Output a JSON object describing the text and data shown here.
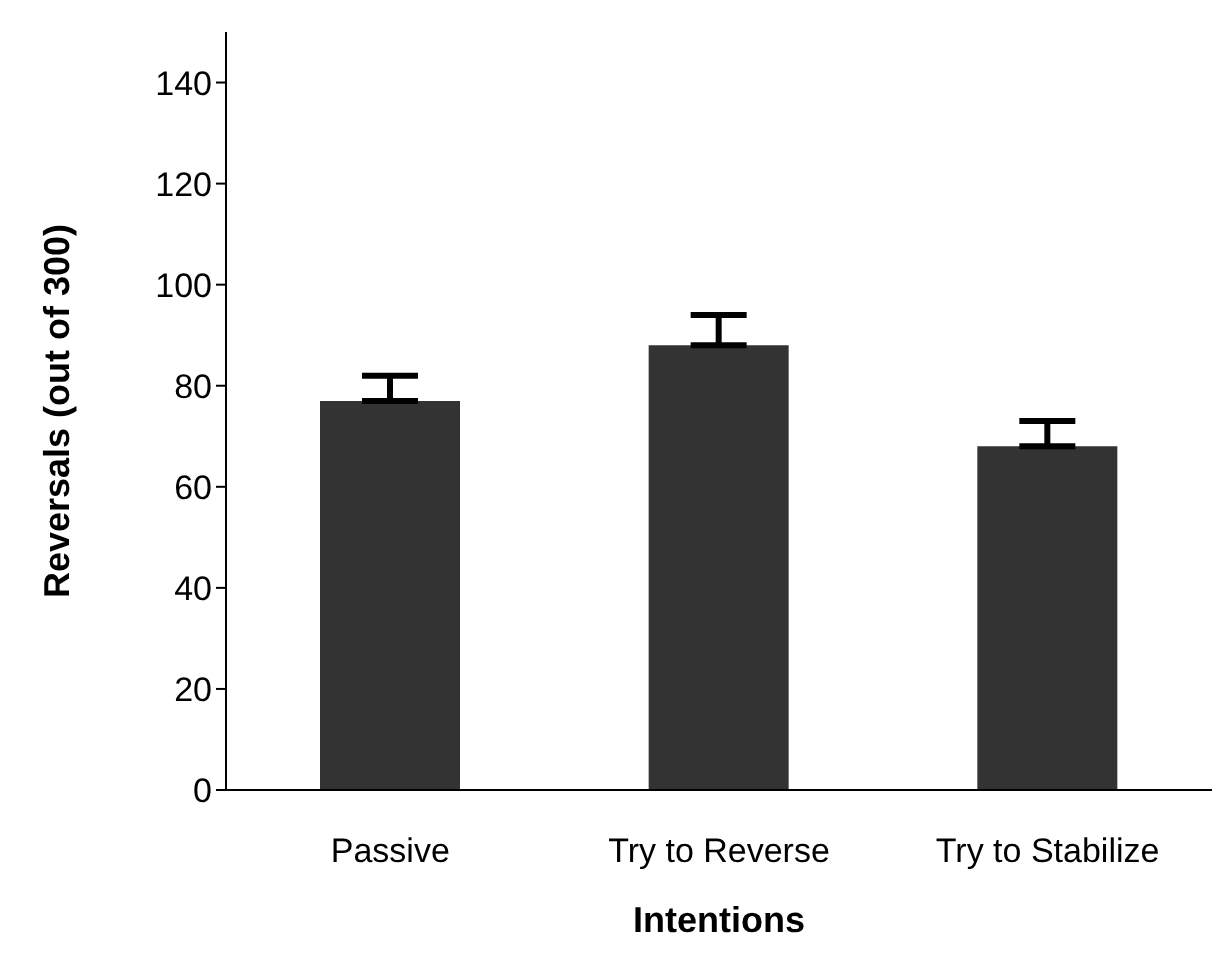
{
  "chart_data": {
    "type": "bar",
    "xlabel": "Intentions",
    "ylabel": "Reversals (out of 300)",
    "categories": [
      "Passive",
      "Try to Reverse",
      "Try to Stabilize"
    ],
    "values": [
      77,
      88,
      68
    ],
    "errors": [
      [
        77,
        82
      ],
      [
        88,
        94
      ],
      [
        68,
        73
      ]
    ],
    "color": "#333333",
    "ylim": [
      0,
      150
    ],
    "yticks": [
      0,
      20,
      40,
      60,
      80,
      100,
      120,
      140
    ],
    "grid": false,
    "legend": false
  }
}
